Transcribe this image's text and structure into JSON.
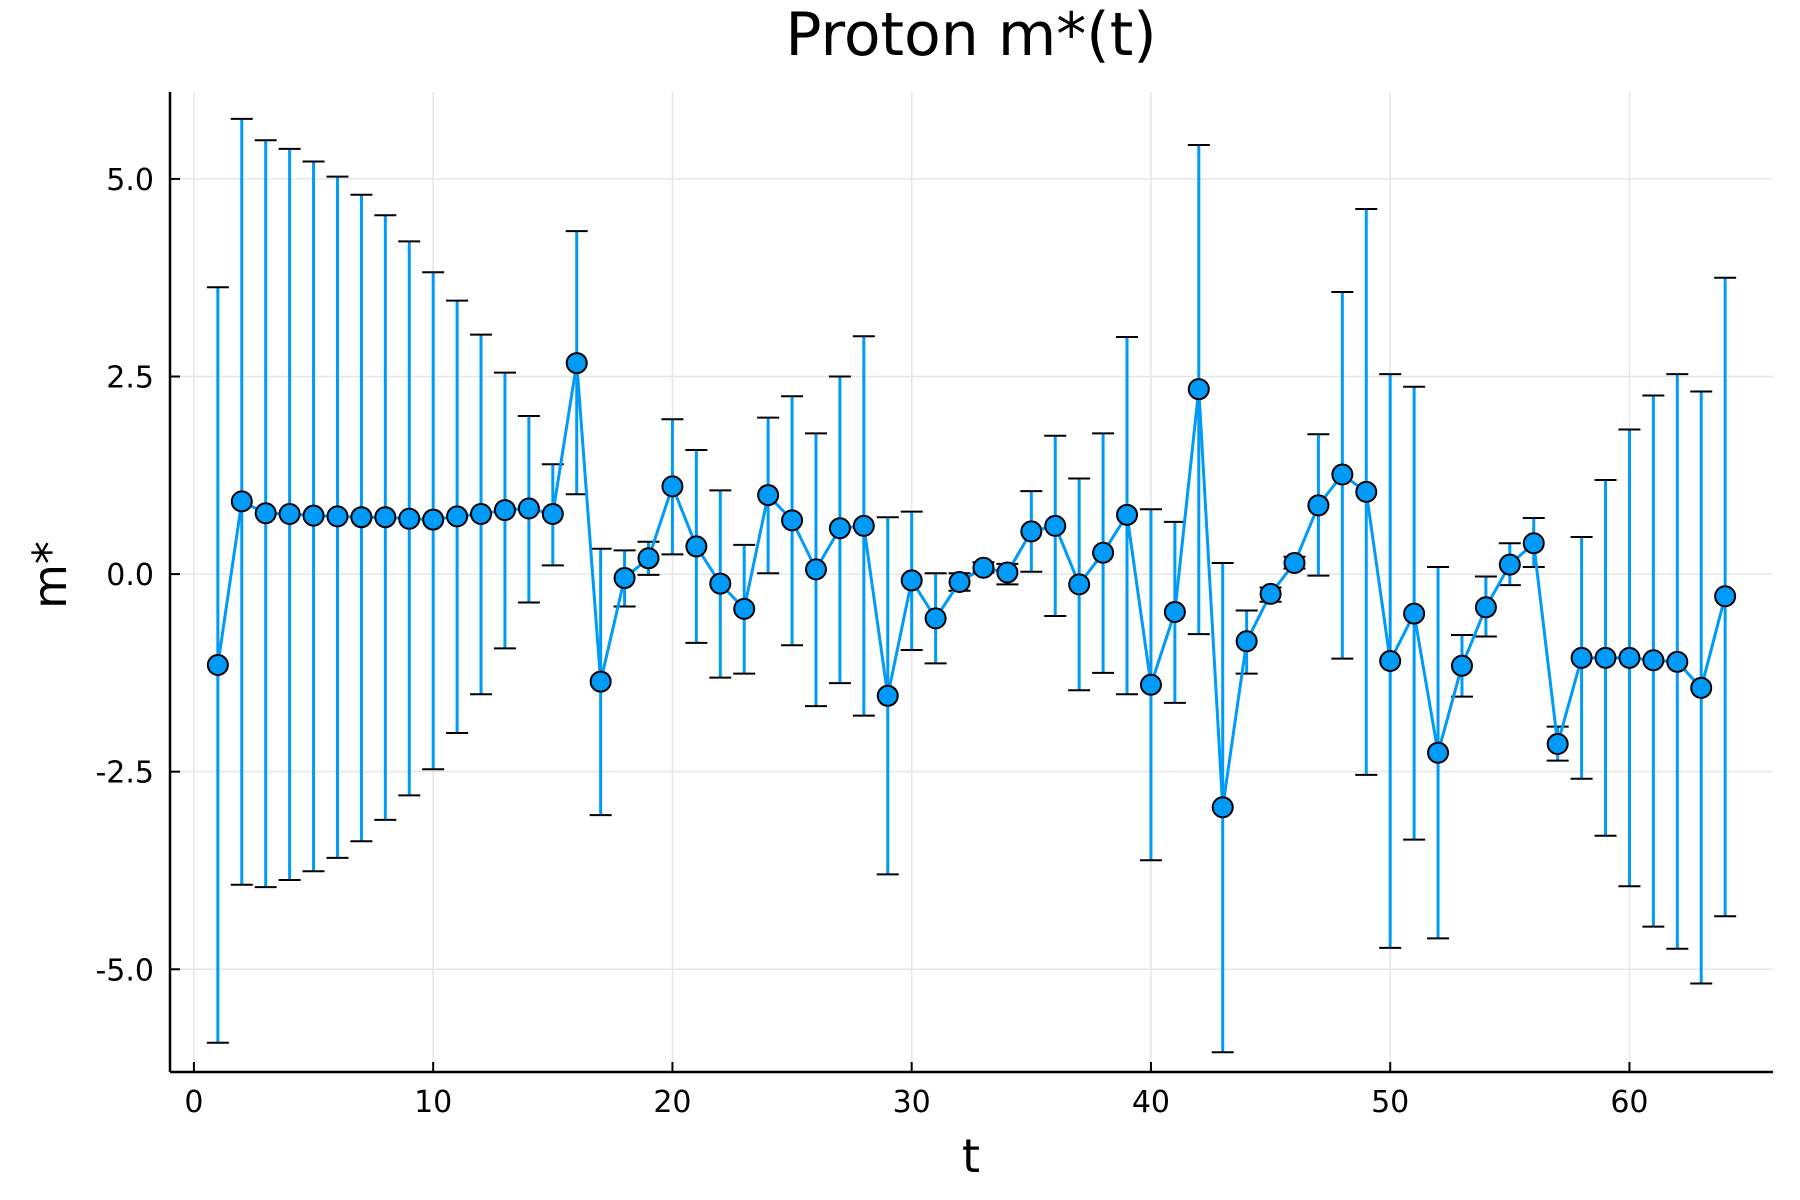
{
  "chart_data": {
    "type": "scatter",
    "title": "Proton m*(t)",
    "xlabel": "t",
    "ylabel": "m*",
    "xlim": [
      -1,
      66
    ],
    "ylim": [
      -6.3,
      6.1
    ],
    "xticks": [
      0,
      10,
      20,
      30,
      40,
      50,
      60
    ],
    "xtick_labels": [
      "0",
      "10",
      "20",
      "30",
      "40",
      "50",
      "60"
    ],
    "yticks": [
      -5.0,
      -2.5,
      0.0,
      2.5,
      5.0
    ],
    "ytick_labels": [
      "-5.0",
      "-2.5",
      "0.0",
      "2.5",
      "5.0"
    ],
    "grid": true,
    "legend": "none",
    "color": "#009af9",
    "series": [
      {
        "x": [
          1,
          2,
          3,
          4,
          5,
          6,
          7,
          8,
          9,
          10,
          11,
          12,
          13,
          14,
          15,
          16,
          17,
          18,
          19,
          20,
          21,
          22,
          23,
          24,
          25,
          26,
          27,
          28,
          29,
          30,
          31,
          32,
          33,
          34,
          35,
          36,
          37,
          38,
          39,
          40,
          41,
          42,
          43,
          44,
          45,
          46,
          47,
          48,
          49,
          50,
          51,
          52,
          53,
          54,
          55,
          56,
          57,
          58,
          59,
          60,
          61,
          62,
          63,
          64
        ],
        "y": [
          -1.15,
          0.92,
          0.77,
          0.76,
          0.74,
          0.73,
          0.72,
          0.72,
          0.7,
          0.69,
          0.73,
          0.76,
          0.81,
          0.83,
          0.76,
          2.67,
          -1.36,
          -0.05,
          0.2,
          1.11,
          0.35,
          -0.12,
          -0.44,
          1.0,
          0.68,
          0.06,
          0.58,
          0.61,
          -1.54,
          -0.08,
          -0.56,
          -0.1,
          0.08,
          0.02,
          0.54,
          0.61,
          -0.13,
          0.27,
          0.75,
          -1.4,
          -0.48,
          2.34,
          -2.95,
          -0.85,
          -0.25,
          0.14,
          0.87,
          1.26,
          1.04,
          -1.1,
          -0.5,
          -2.26,
          -1.16,
          -0.42,
          0.12,
          0.39,
          -2.15,
          -1.06,
          -1.06,
          -1.06,
          -1.09,
          -1.11,
          -1.44,
          -0.28
        ],
        "y_upper": [
          3.63,
          5.76,
          5.49,
          5.38,
          5.22,
          5.03,
          4.8,
          4.54,
          4.21,
          3.82,
          3.46,
          3.03,
          2.55,
          2.0,
          1.39,
          4.34,
          0.32,
          0.3,
          0.41,
          1.96,
          1.57,
          1.06,
          0.37,
          1.98,
          2.25,
          1.78,
          2.5,
          3.01,
          0.72,
          0.79,
          0.01,
          0.01,
          0.15,
          0.13,
          1.05,
          1.75,
          1.21,
          1.78,
          3.0,
          0.82,
          0.66,
          5.43,
          0.14,
          -0.46,
          -0.17,
          0.22,
          1.77,
          3.57,
          4.62,
          2.53,
          2.37,
          0.09,
          -0.77,
          -0.03,
          0.39,
          0.71,
          -1.93,
          0.47,
          1.19,
          1.83,
          2.26,
          2.53,
          2.31,
          3.75
        ],
        "y_lower": [
          -5.93,
          -3.93,
          -3.96,
          -3.87,
          -3.76,
          -3.59,
          -3.38,
          -3.11,
          -2.8,
          -2.47,
          -2.01,
          -1.52,
          -0.94,
          -0.36,
          0.11,
          1.01,
          -3.05,
          -0.41,
          -0.01,
          0.25,
          -0.87,
          -1.31,
          -1.26,
          0.01,
          -0.9,
          -1.67,
          -1.38,
          -1.79,
          -3.8,
          -0.96,
          -1.13,
          -0.21,
          0.02,
          -0.13,
          0.03,
          -0.53,
          -1.47,
          -1.25,
          -1.52,
          -3.62,
          -1.63,
          -0.76,
          -6.05,
          -1.26,
          -0.35,
          0.07,
          -0.02,
          -1.07,
          -2.54,
          -4.73,
          -3.36,
          -4.61,
          -1.55,
          -0.79,
          -0.14,
          0.09,
          -2.36,
          -2.59,
          -3.31,
          -3.95,
          -4.46,
          -4.74,
          -5.18,
          -4.33
        ]
      }
    ]
  }
}
